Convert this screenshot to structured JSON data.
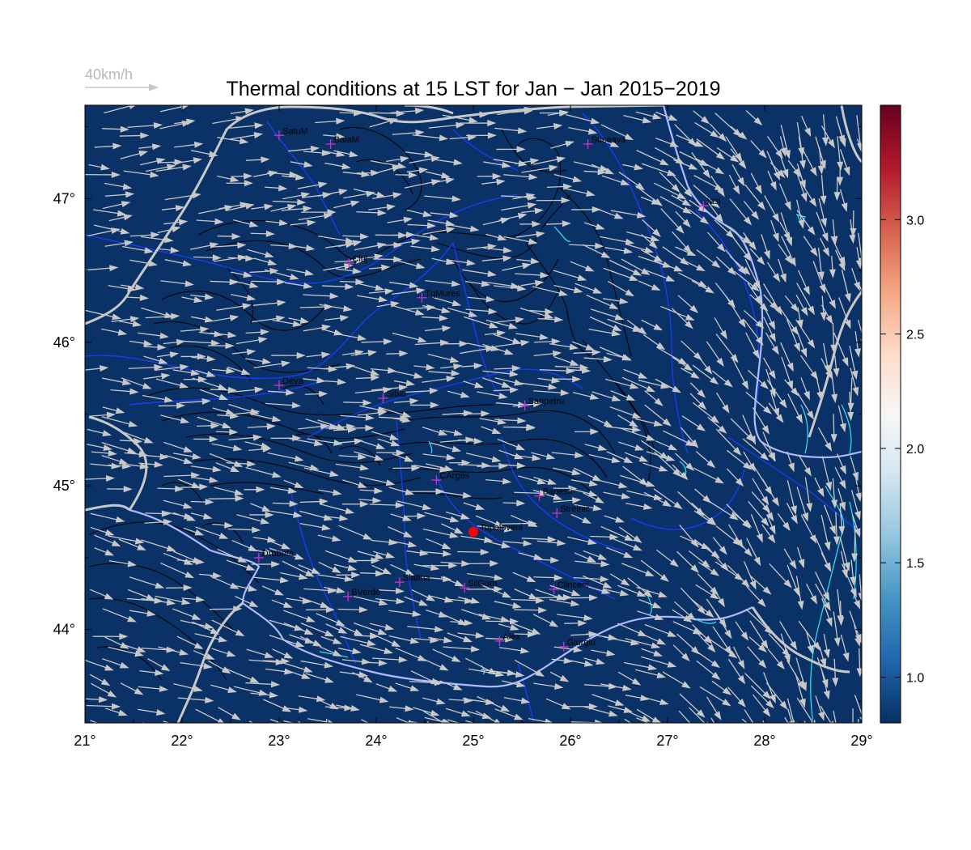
{
  "title": "Thermal conditions at 15 LST for Jan − Jan  2015−2019",
  "reference_arrow_label": "40km/h",
  "map": {
    "lon_ticks": [
      "21°",
      "22°",
      "23°",
      "24°",
      "25°",
      "26°",
      "27°",
      "28°",
      "29°"
    ],
    "lat_ticks": [
      "44°",
      "45°",
      "46°",
      "47°"
    ],
    "lon_range": [
      21,
      29
    ],
    "lat_range": [
      43.35,
      47.65
    ],
    "background_color": "#0b3266"
  },
  "colorbar": {
    "ticks": [
      "1.0",
      "1.5",
      "2.0",
      "2.5",
      "3.0"
    ],
    "range": [
      0.8,
      3.5
    ],
    "colors": [
      "#053061",
      "#2166ac",
      "#4393c3",
      "#92c5de",
      "#d1e5f0",
      "#f7f7f7",
      "#fddbc7",
      "#f4a582",
      "#d6604d",
      "#b2182b",
      "#67001f"
    ]
  },
  "cities": [
    {
      "name": "SatuM",
      "lon": 23.0,
      "lat": 47.44
    },
    {
      "name": "BaiaM",
      "lon": 23.53,
      "lat": 47.38
    },
    {
      "name": "Suceava",
      "lon": 26.18,
      "lat": 47.38
    },
    {
      "name": "Iasi",
      "lon": 27.37,
      "lat": 46.95
    },
    {
      "name": "Cluj",
      "lon": 23.72,
      "lat": 46.55
    },
    {
      "name": "TgMures",
      "lon": 24.47,
      "lat": 46.31
    },
    {
      "name": "Deva",
      "lon": 23.0,
      "lat": 45.7
    },
    {
      "name": "Sibiu",
      "lon": 24.07,
      "lat": 45.61
    },
    {
      "name": "Sanpetru",
      "lon": 25.53,
      "lat": 45.56
    },
    {
      "name": "CArges",
      "lon": 24.62,
      "lat": 45.04
    },
    {
      "name": "Banesti",
      "lon": 25.68,
      "lat": 44.93
    },
    {
      "name": "Streinic",
      "lon": 25.86,
      "lat": 44.81
    },
    {
      "name": "Drobeta",
      "lon": 22.79,
      "lat": 44.5
    },
    {
      "name": "Slatina",
      "lon": 24.24,
      "lat": 44.33
    },
    {
      "name": "SilGum",
      "lon": 24.91,
      "lat": 44.29
    },
    {
      "name": "Clinceni",
      "lon": 25.83,
      "lat": 44.28
    },
    {
      "name": "BVerde",
      "lon": 23.71,
      "lat": 44.23
    },
    {
      "name": "Alex",
      "lon": 25.27,
      "lat": 43.92
    },
    {
      "name": "Giurgiu",
      "lon": 25.93,
      "lat": 43.88
    }
  ],
  "site": {
    "name": "Topoloveni",
    "lon": 25.0,
    "lat": 44.68,
    "color": "#ff0000"
  },
  "colors": {
    "border": "#c8c8c8",
    "rivers": "#1a3cff",
    "danube": "#b0b8ff",
    "lakes": "#30e6ff",
    "contours": "#000000",
    "arrows": "#c8c8c8",
    "city_marker": "#cc33cc"
  }
}
